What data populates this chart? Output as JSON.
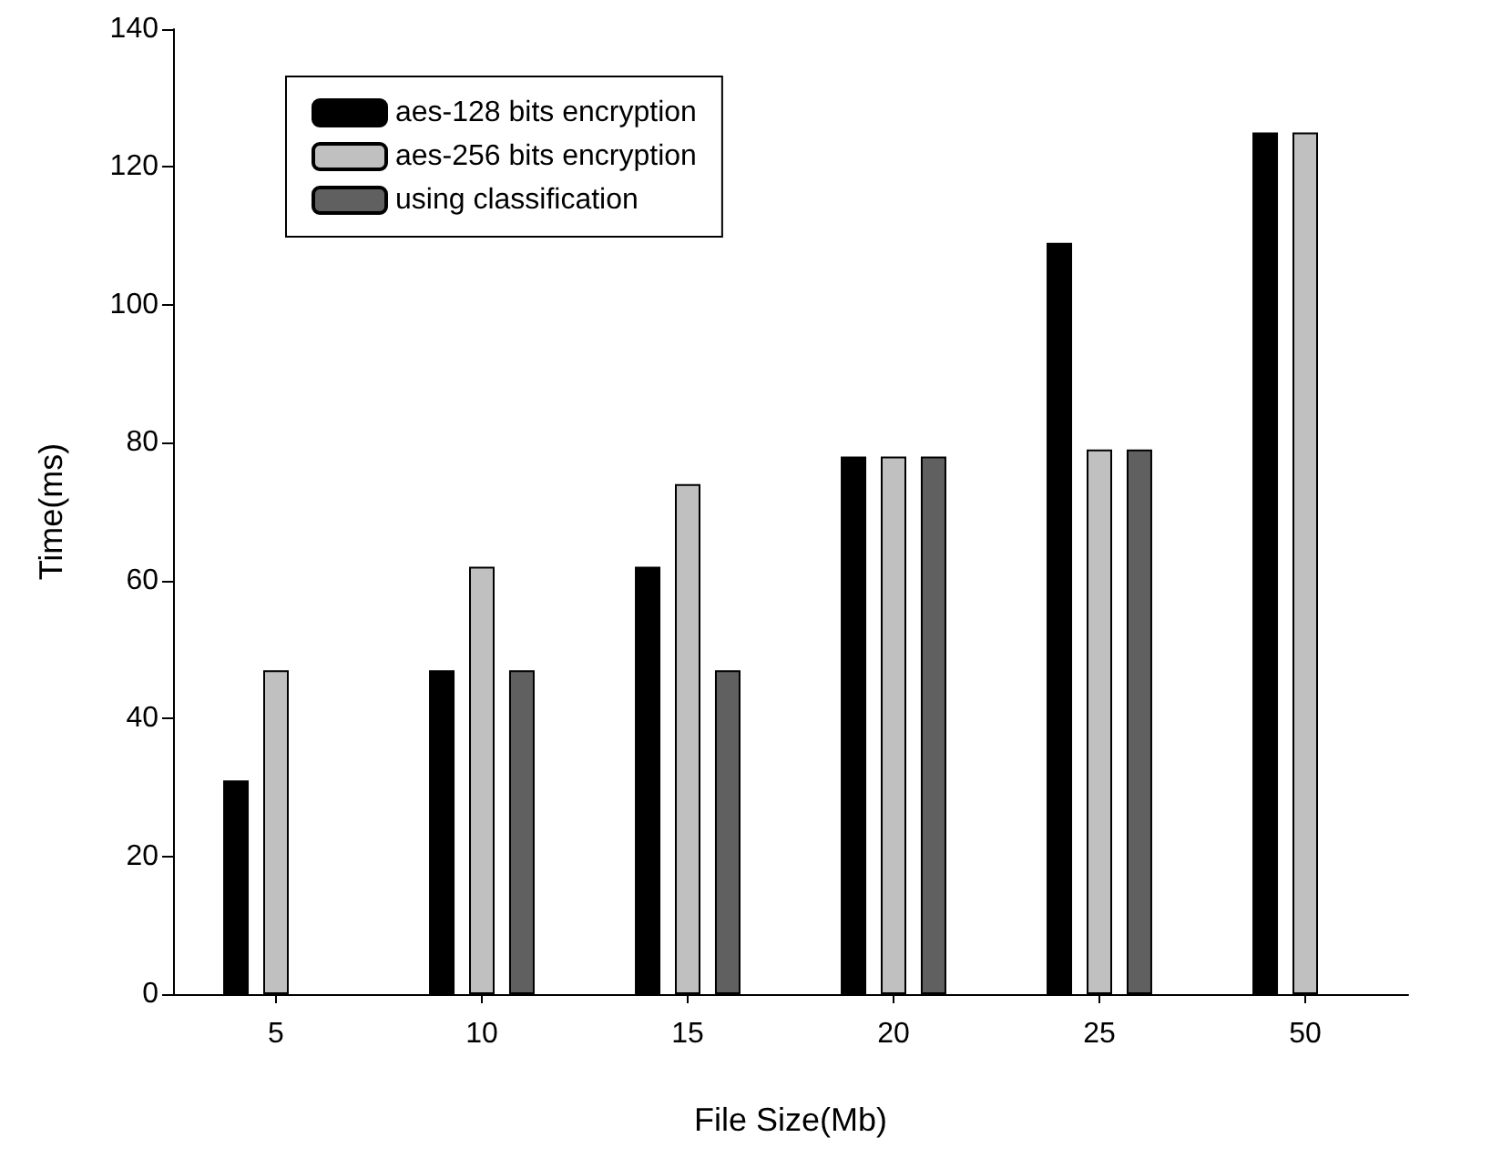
{
  "chart_data": {
    "type": "bar",
    "xlabel": "File Size(Mb)",
    "ylabel": "Time(ms)",
    "categories": [
      "5",
      "10",
      "15",
      "20",
      "25",
      "50"
    ],
    "series": [
      {
        "name": "aes-128 bits encryption",
        "color": "#000000",
        "values": [
          31,
          47,
          62,
          78,
          109,
          125
        ]
      },
      {
        "name": "aes-256 bits encryption",
        "color": "#c0c0c0",
        "values": [
          47,
          62,
          74,
          78,
          79,
          125
        ]
      },
      {
        "name": "using classification",
        "color": "#606060",
        "values": [
          null,
          47,
          47,
          78,
          79,
          null
        ]
      }
    ],
    "ylim": [
      0,
      140
    ],
    "yticks": [
      0,
      20,
      40,
      60,
      80,
      100,
      120,
      140
    ],
    "grid": false,
    "legend": "top left"
  }
}
